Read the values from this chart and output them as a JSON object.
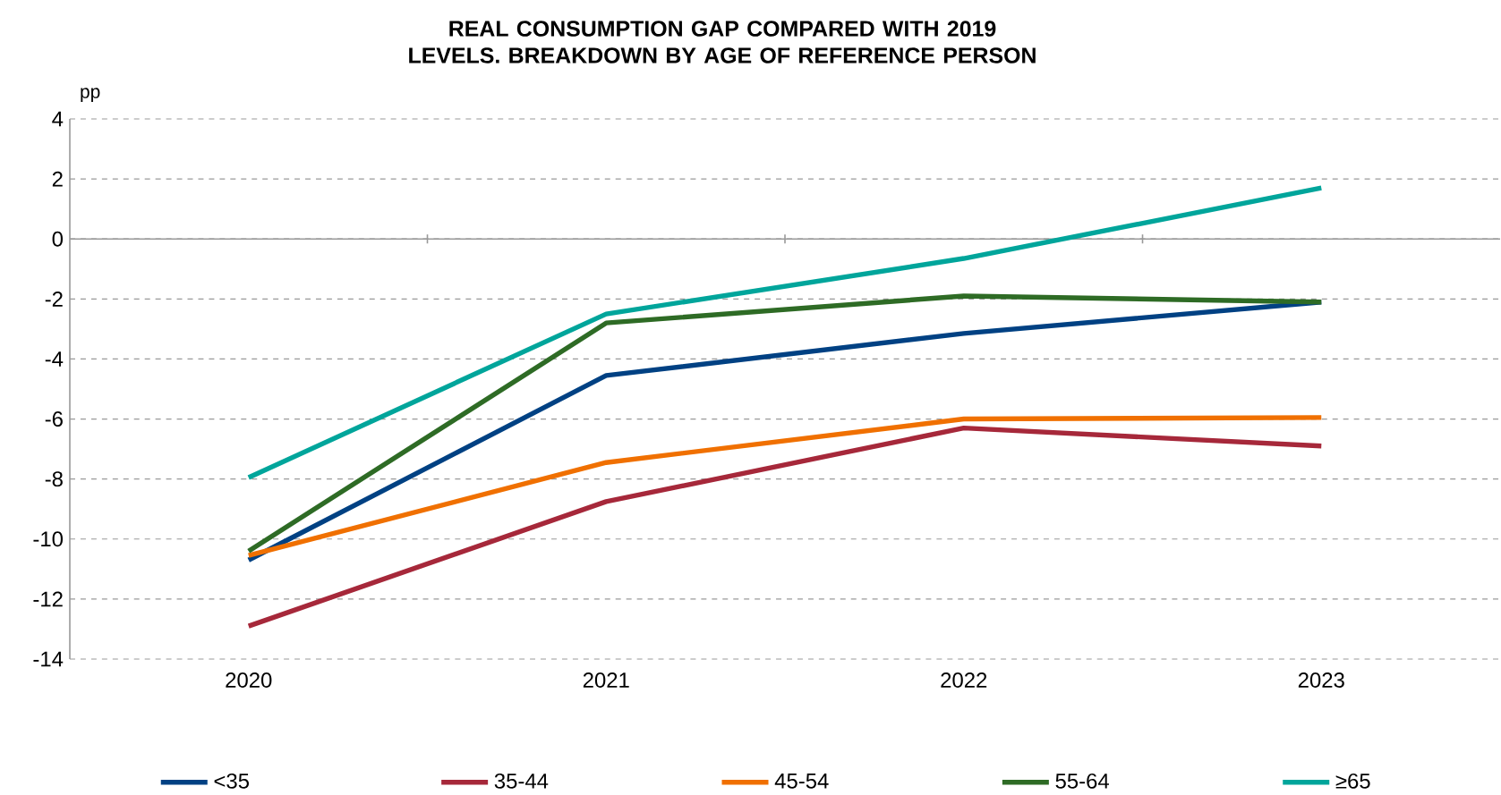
{
  "chart_data": {
    "type": "line",
    "title": "REAL CONSUMPTION GAP COMPARED WITH 2019 LEVELS. BREAKDOWN BY AGE OF REFERENCE PERSON",
    "ylabel": "pp",
    "categories": [
      "2020",
      "2021",
      "2022",
      "2023"
    ],
    "series": [
      {
        "name": "<35",
        "color": "#004183",
        "values": [
          -10.7,
          -4.55,
          -3.15,
          -2.1
        ]
      },
      {
        "name": "35-44",
        "color": "#a6283a",
        "values": [
          -12.9,
          -8.75,
          -6.3,
          -6.9
        ]
      },
      {
        "name": "45-54",
        "color": "#f07000",
        "values": [
          -10.55,
          -7.45,
          -6.0,
          -5.95
        ]
      },
      {
        "name": "55-64",
        "color": "#2e6b25",
        "values": [
          -10.4,
          -2.8,
          -1.9,
          -2.1
        ]
      },
      {
        "name": "≥65",
        "color": "#00a59b",
        "values": [
          -7.95,
          -2.5,
          -0.65,
          1.7
        ]
      }
    ],
    "ylim": [
      -14,
      4
    ],
    "yticks": [
      -14,
      -12,
      -10,
      -8,
      -6,
      -4,
      -2,
      0,
      2,
      4
    ],
    "grid": "y",
    "legend": "bottom",
    "line_style": "solid"
  }
}
